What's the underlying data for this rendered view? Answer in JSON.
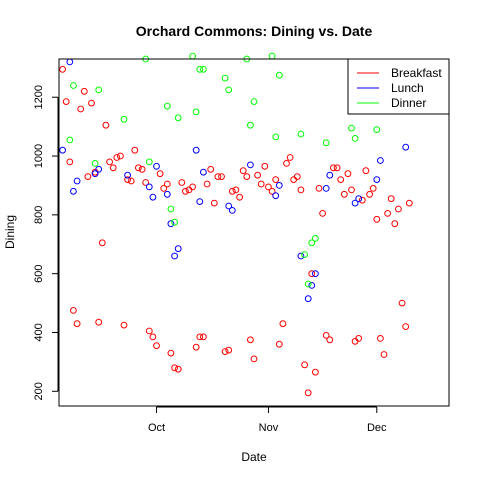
{
  "chart_data": {
    "type": "scatter",
    "title": "Orchard Commons: Dining vs. Date",
    "xlabel": "Date",
    "ylabel": "Dining",
    "x_axis": {
      "type": "date",
      "range": [
        "2024-09-04",
        "2024-12-21"
      ],
      "ticks": [
        {
          "date": "2024-10-01",
          "label": "Oct"
        },
        {
          "date": "2024-11-01",
          "label": "Nov"
        },
        {
          "date": "2024-12-01",
          "label": "Dec"
        }
      ]
    },
    "y_axis": {
      "range": [
        150,
        1330
      ],
      "ticks": [
        200,
        400,
        600,
        800,
        1000,
        1200
      ]
    },
    "grid": false,
    "legend_position": "top-right",
    "series": [
      {
        "name": "Breakfast",
        "color": "#ff0000",
        "points": [
          [
            "2024-09-05",
            1295
          ],
          [
            "2024-09-06",
            1185
          ],
          [
            "2024-09-07",
            980
          ],
          [
            "2024-09-08",
            475
          ],
          [
            "2024-09-09",
            430
          ],
          [
            "2024-09-10",
            1160
          ],
          [
            "2024-09-11",
            1220
          ],
          [
            "2024-09-12",
            930
          ],
          [
            "2024-09-13",
            1180
          ],
          [
            "2024-09-14",
            945
          ],
          [
            "2024-09-15",
            435
          ],
          [
            "2024-09-16",
            705
          ],
          [
            "2024-09-17",
            1105
          ],
          [
            "2024-09-18",
            980
          ],
          [
            "2024-09-19",
            960
          ],
          [
            "2024-09-20",
            995
          ],
          [
            "2024-09-21",
            1000
          ],
          [
            "2024-09-22",
            425
          ],
          [
            "2024-09-23",
            920
          ],
          [
            "2024-09-24",
            915
          ],
          [
            "2024-09-25",
            1020
          ],
          [
            "2024-09-26",
            960
          ],
          [
            "2024-09-27",
            955
          ],
          [
            "2024-09-28",
            910
          ],
          [
            "2024-09-29",
            405
          ],
          [
            "2024-09-30",
            385
          ],
          [
            "2024-10-01",
            355
          ],
          [
            "2024-10-02",
            940
          ],
          [
            "2024-10-03",
            890
          ],
          [
            "2024-10-04",
            905
          ],
          [
            "2024-10-05",
            330
          ],
          [
            "2024-10-06",
            280
          ],
          [
            "2024-10-07",
            275
          ],
          [
            "2024-10-08",
            910
          ],
          [
            "2024-10-09",
            880
          ],
          [
            "2024-10-10",
            885
          ],
          [
            "2024-10-11",
            895
          ],
          [
            "2024-10-12",
            350
          ],
          [
            "2024-10-13",
            385
          ],
          [
            "2024-10-14",
            385
          ],
          [
            "2024-10-15",
            905
          ],
          [
            "2024-10-16",
            955
          ],
          [
            "2024-10-17",
            840
          ],
          [
            "2024-10-18",
            930
          ],
          [
            "2024-10-19",
            930
          ],
          [
            "2024-10-20",
            335
          ],
          [
            "2024-10-21",
            340
          ],
          [
            "2024-10-22",
            880
          ],
          [
            "2024-10-23",
            885
          ],
          [
            "2024-10-24",
            860
          ],
          [
            "2024-10-25",
            950
          ],
          [
            "2024-10-26",
            930
          ],
          [
            "2024-10-27",
            375
          ],
          [
            "2024-10-28",
            310
          ],
          [
            "2024-10-29",
            935
          ],
          [
            "2024-10-30",
            905
          ],
          [
            "2024-10-31",
            965
          ],
          [
            "2024-11-01",
            895
          ],
          [
            "2024-11-02",
            880
          ],
          [
            "2024-11-03",
            920
          ],
          [
            "2024-11-04",
            360
          ],
          [
            "2024-11-05",
            430
          ],
          [
            "2024-11-06",
            975
          ],
          [
            "2024-11-07",
            995
          ],
          [
            "2024-11-08",
            920
          ],
          [
            "2024-11-09",
            930
          ],
          [
            "2024-11-10",
            885
          ],
          [
            "2024-11-11",
            290
          ],
          [
            "2024-11-12",
            195
          ],
          [
            "2024-11-13",
            600
          ],
          [
            "2024-11-14",
            265
          ],
          [
            "2024-11-15",
            890
          ],
          [
            "2024-11-16",
            805
          ],
          [
            "2024-11-17",
            390
          ],
          [
            "2024-11-18",
            375
          ],
          [
            "2024-11-19",
            960
          ],
          [
            "2024-11-20",
            960
          ],
          [
            "2024-11-21",
            920
          ],
          [
            "2024-11-22",
            870
          ],
          [
            "2024-11-23",
            940
          ],
          [
            "2024-11-24",
            885
          ],
          [
            "2024-11-25",
            370
          ],
          [
            "2024-11-26",
            380
          ],
          [
            "2024-11-27",
            850
          ],
          [
            "2024-11-28",
            950
          ],
          [
            "2024-11-29",
            870
          ],
          [
            "2024-11-30",
            890
          ],
          [
            "2024-12-01",
            785
          ],
          [
            "2024-12-02",
            380
          ],
          [
            "2024-12-03",
            325
          ],
          [
            "2024-12-04",
            805
          ],
          [
            "2024-12-05",
            855
          ],
          [
            "2024-12-06",
            770
          ],
          [
            "2024-12-07",
            820
          ],
          [
            "2024-12-08",
            500
          ],
          [
            "2024-12-09",
            420
          ],
          [
            "2024-12-10",
            840
          ]
        ]
      },
      {
        "name": "Lunch",
        "color": "#0000ff",
        "points": [
          [
            "2024-09-05",
            1020
          ],
          [
            "2024-09-07",
            1320
          ],
          [
            "2024-09-08",
            880
          ],
          [
            "2024-09-09",
            915
          ],
          [
            "2024-09-14",
            940
          ],
          [
            "2024-09-15",
            955
          ],
          [
            "2024-09-23",
            935
          ],
          [
            "2024-09-29",
            895
          ],
          [
            "2024-09-30",
            860
          ],
          [
            "2024-10-01",
            965
          ],
          [
            "2024-10-04",
            870
          ],
          [
            "2024-10-05",
            770
          ],
          [
            "2024-10-06",
            660
          ],
          [
            "2024-10-07",
            685
          ],
          [
            "2024-10-12",
            1020
          ],
          [
            "2024-10-13",
            845
          ],
          [
            "2024-10-14",
            945
          ],
          [
            "2024-10-21",
            830
          ],
          [
            "2024-10-22",
            815
          ],
          [
            "2024-10-27",
            970
          ],
          [
            "2024-11-03",
            865
          ],
          [
            "2024-11-04",
            900
          ],
          [
            "2024-11-10",
            660
          ],
          [
            "2024-11-12",
            515
          ],
          [
            "2024-11-13",
            560
          ],
          [
            "2024-11-14",
            600
          ],
          [
            "2024-11-17",
            890
          ],
          [
            "2024-11-18",
            935
          ],
          [
            "2024-11-25",
            840
          ],
          [
            "2024-11-26",
            855
          ],
          [
            "2024-12-01",
            920
          ],
          [
            "2024-12-02",
            985
          ],
          [
            "2024-12-09",
            1030
          ]
        ]
      },
      {
        "name": "Dinner",
        "color": "#00ff00",
        "points": [
          [
            "2024-09-07",
            1055
          ],
          [
            "2024-09-08",
            1240
          ],
          [
            "2024-09-14",
            975
          ],
          [
            "2024-09-15",
            1225
          ],
          [
            "2024-09-22",
            1125
          ],
          [
            "2024-09-28",
            1330
          ],
          [
            "2024-09-29",
            980
          ],
          [
            "2024-10-04",
            1170
          ],
          [
            "2024-10-05",
            820
          ],
          [
            "2024-10-06",
            775
          ],
          [
            "2024-10-07",
            1130
          ],
          [
            "2024-10-11",
            1340
          ],
          [
            "2024-10-12",
            1150
          ],
          [
            "2024-10-13",
            1295
          ],
          [
            "2024-10-14",
            1295
          ],
          [
            "2024-10-20",
            1265
          ],
          [
            "2024-10-21",
            1225
          ],
          [
            "2024-10-26",
            1330
          ],
          [
            "2024-10-27",
            1105
          ],
          [
            "2024-10-28",
            1185
          ],
          [
            "2024-11-02",
            1340
          ],
          [
            "2024-11-03",
            1065
          ],
          [
            "2024-11-04",
            1275
          ],
          [
            "2024-11-10",
            1075
          ],
          [
            "2024-11-11",
            665
          ],
          [
            "2024-11-12",
            565
          ],
          [
            "2024-11-13",
            705
          ],
          [
            "2024-11-14",
            720
          ],
          [
            "2024-11-17",
            1045
          ],
          [
            "2024-11-24",
            1095
          ],
          [
            "2024-11-25",
            1060
          ],
          [
            "2024-12-01",
            1090
          ]
        ]
      }
    ]
  }
}
